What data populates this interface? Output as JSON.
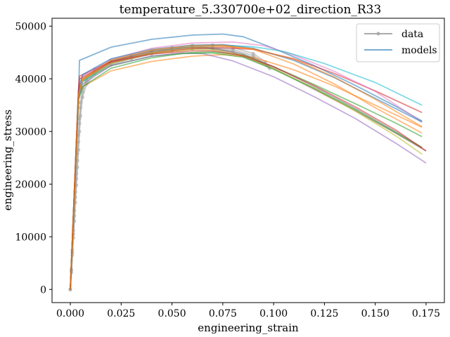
{
  "chart_data": {
    "type": "line",
    "title": "temperature_5.330700e+02_direction_R33",
    "xlabel": "engineering_strain",
    "ylabel": "engineering_stress",
    "xlim": [
      -0.009,
      0.184
    ],
    "ylim": [
      -2500,
      51500
    ],
    "xticks": [
      0.0,
      0.025,
      0.05,
      0.075,
      0.1,
      0.125,
      0.15,
      0.175
    ],
    "xtick_labels": [
      "0.000",
      "0.025",
      "0.050",
      "0.075",
      "0.100",
      "0.125",
      "0.150",
      "0.175"
    ],
    "yticks": [
      0,
      10000,
      20000,
      30000,
      40000,
      50000
    ],
    "ytick_labels": [
      "0",
      "10000",
      "20000",
      "30000",
      "40000",
      "50000"
    ],
    "grid": false,
    "legend": {
      "placement": "top-right",
      "entries": [
        {
          "label": "data",
          "color": "#aaaaaa",
          "marker": "circle"
        },
        {
          "label": "models",
          "color": "#1f77b4",
          "marker": "none"
        }
      ]
    },
    "data_series": {
      "name": "data",
      "color": "#aaaaaa",
      "curves": [
        [
          [
            0.0,
            0
          ],
          [
            0.0005,
            3500
          ],
          [
            0.001,
            7000
          ],
          [
            0.0015,
            10500
          ],
          [
            0.002,
            14000
          ],
          [
            0.0025,
            17500
          ],
          [
            0.003,
            21000
          ],
          [
            0.0035,
            24500
          ],
          [
            0.004,
            28000
          ],
          [
            0.0045,
            31500
          ],
          [
            0.005,
            34500
          ],
          [
            0.006,
            37500
          ],
          [
            0.008,
            39600
          ],
          [
            0.012,
            41300
          ],
          [
            0.02,
            42800
          ],
          [
            0.03,
            44000
          ],
          [
            0.04,
            44900
          ],
          [
            0.05,
            45500
          ],
          [
            0.06,
            45900
          ],
          [
            0.07,
            46000
          ],
          [
            0.08,
            45600
          ],
          [
            0.09,
            44400
          ],
          [
            0.097,
            42500
          ]
        ],
        [
          [
            0.0,
            0
          ],
          [
            0.0005,
            3200
          ],
          [
            0.001,
            6500
          ],
          [
            0.0015,
            9800
          ],
          [
            0.002,
            13000
          ],
          [
            0.0025,
            16500
          ],
          [
            0.003,
            19800
          ],
          [
            0.0035,
            23200
          ],
          [
            0.004,
            26500
          ],
          [
            0.0045,
            30000
          ],
          [
            0.005,
            33000
          ],
          [
            0.006,
            36500
          ],
          [
            0.008,
            39000
          ],
          [
            0.012,
            41000
          ],
          [
            0.02,
            42600
          ],
          [
            0.03,
            43800
          ],
          [
            0.04,
            44700
          ],
          [
            0.05,
            45300
          ],
          [
            0.06,
            45700
          ],
          [
            0.07,
            45800
          ],
          [
            0.08,
            45300
          ],
          [
            0.09,
            44000
          ],
          [
            0.098,
            42000
          ]
        ],
        [
          [
            0.0,
            0
          ],
          [
            0.0005,
            3800
          ],
          [
            0.001,
            7500
          ],
          [
            0.0015,
            11200
          ],
          [
            0.002,
            15000
          ],
          [
            0.0025,
            18500
          ],
          [
            0.003,
            22000
          ],
          [
            0.0035,
            25800
          ],
          [
            0.004,
            29300
          ],
          [
            0.0045,
            32500
          ],
          [
            0.005,
            35500
          ],
          [
            0.006,
            38200
          ],
          [
            0.008,
            40200
          ],
          [
            0.012,
            41800
          ],
          [
            0.02,
            43300
          ],
          [
            0.03,
            44400
          ],
          [
            0.04,
            45300
          ],
          [
            0.05,
            45900
          ],
          [
            0.06,
            46300
          ],
          [
            0.07,
            46400
          ],
          [
            0.08,
            46000
          ],
          [
            0.09,
            44800
          ],
          [
            0.096,
            43200
          ]
        ]
      ]
    },
    "model_series": [
      {
        "color": "#1f77b4",
        "points": [
          [
            0.0,
            0
          ],
          [
            0.004,
            36000
          ],
          [
            0.0045,
            43500
          ],
          [
            0.02,
            46000
          ],
          [
            0.04,
            47500
          ],
          [
            0.06,
            48300
          ],
          [
            0.075,
            48500
          ],
          [
            0.085,
            48000
          ],
          [
            0.1,
            45800
          ],
          [
            0.12,
            42500
          ],
          [
            0.14,
            38800
          ],
          [
            0.16,
            34800
          ],
          [
            0.173,
            32000
          ]
        ]
      },
      {
        "color": "#ff7f0e",
        "points": [
          [
            0.0,
            0
          ],
          [
            0.004,
            36500
          ],
          [
            0.006,
            38500
          ],
          [
            0.02,
            41500
          ],
          [
            0.04,
            43300
          ],
          [
            0.06,
            44300
          ],
          [
            0.075,
            44600
          ],
          [
            0.09,
            44100
          ],
          [
            0.11,
            41700
          ],
          [
            0.13,
            38600
          ],
          [
            0.15,
            35000
          ],
          [
            0.173,
            30800
          ]
        ]
      },
      {
        "color": "#2ca02c",
        "points": [
          [
            0.0,
            0
          ],
          [
            0.004,
            37000
          ],
          [
            0.006,
            39500
          ],
          [
            0.02,
            42500
          ],
          [
            0.04,
            44300
          ],
          [
            0.06,
            45000
          ],
          [
            0.07,
            45100
          ],
          [
            0.085,
            44500
          ],
          [
            0.1,
            42300
          ],
          [
            0.12,
            38900
          ],
          [
            0.14,
            35300
          ],
          [
            0.16,
            31600
          ],
          [
            0.173,
            29000
          ]
        ]
      },
      {
        "color": "#d62728",
        "points": [
          [
            0.0,
            0
          ],
          [
            0.004,
            37500
          ],
          [
            0.0045,
            40500
          ],
          [
            0.02,
            43300
          ],
          [
            0.04,
            44900
          ],
          [
            0.06,
            45700
          ],
          [
            0.075,
            45900
          ],
          [
            0.09,
            45600
          ],
          [
            0.11,
            43800
          ],
          [
            0.13,
            41000
          ],
          [
            0.15,
            37700
          ],
          [
            0.173,
            33600
          ]
        ]
      },
      {
        "color": "#9467bd",
        "points": [
          [
            0.0,
            0
          ],
          [
            0.004,
            36000
          ],
          [
            0.006,
            39000
          ],
          [
            0.02,
            42500
          ],
          [
            0.04,
            44300
          ],
          [
            0.055,
            44900
          ],
          [
            0.065,
            44800
          ],
          [
            0.08,
            43400
          ],
          [
            0.1,
            40400
          ],
          [
            0.12,
            36600
          ],
          [
            0.14,
            32500
          ],
          [
            0.16,
            27800
          ],
          [
            0.175,
            24000
          ]
        ]
      },
      {
        "color": "#8c564b",
        "points": [
          [
            0.0,
            0
          ],
          [
            0.004,
            37000
          ],
          [
            0.006,
            39800
          ],
          [
            0.02,
            43300
          ],
          [
            0.04,
            45200
          ],
          [
            0.055,
            45900
          ],
          [
            0.065,
            46000
          ],
          [
            0.08,
            45000
          ],
          [
            0.1,
            42000
          ],
          [
            0.12,
            38000
          ],
          [
            0.14,
            34000
          ],
          [
            0.16,
            29700
          ],
          [
            0.175,
            26300
          ]
        ]
      },
      {
        "color": "#e377c2",
        "points": [
          [
            0.0,
            0
          ],
          [
            0.004,
            37500
          ],
          [
            0.006,
            40500
          ],
          [
            0.02,
            43700
          ],
          [
            0.04,
            45800
          ],
          [
            0.06,
            46800
          ],
          [
            0.08,
            47000
          ],
          [
            0.095,
            46300
          ],
          [
            0.11,
            44500
          ],
          [
            0.13,
            41400
          ],
          [
            0.15,
            37600
          ],
          [
            0.173,
            31800
          ]
        ]
      },
      {
        "color": "#7f7f7f",
        "points": [
          [
            0.0,
            0
          ],
          [
            0.004,
            37500
          ],
          [
            0.006,
            40000
          ],
          [
            0.02,
            43500
          ],
          [
            0.04,
            45300
          ],
          [
            0.06,
            46000
          ],
          [
            0.07,
            45900
          ],
          [
            0.085,
            44700
          ],
          [
            0.1,
            42300
          ],
          [
            0.12,
            38500
          ],
          [
            0.14,
            34400
          ],
          [
            0.16,
            30000
          ],
          [
            0.173,
            27000
          ]
        ]
      },
      {
        "color": "#bcbd22",
        "points": [
          [
            0.0,
            0
          ],
          [
            0.004,
            37000
          ],
          [
            0.006,
            39800
          ],
          [
            0.02,
            42900
          ],
          [
            0.04,
            44800
          ],
          [
            0.06,
            45600
          ],
          [
            0.07,
            45500
          ],
          [
            0.085,
            44400
          ],
          [
            0.1,
            41900
          ],
          [
            0.12,
            38200
          ],
          [
            0.14,
            33900
          ],
          [
            0.16,
            29200
          ],
          [
            0.173,
            25700
          ]
        ]
      },
      {
        "color": "#17becf",
        "points": [
          [
            0.0,
            0
          ],
          [
            0.004,
            36500
          ],
          [
            0.006,
            39500
          ],
          [
            0.02,
            43000
          ],
          [
            0.04,
            45000
          ],
          [
            0.06,
            46100
          ],
          [
            0.075,
            46400
          ],
          [
            0.09,
            46100
          ],
          [
            0.105,
            45200
          ],
          [
            0.125,
            42900
          ],
          [
            0.15,
            39300
          ],
          [
            0.173,
            35000
          ]
        ]
      },
      {
        "color": "#1f77b4",
        "points": [
          [
            0.0,
            0
          ],
          [
            0.004,
            38000
          ],
          [
            0.006,
            40800
          ],
          [
            0.02,
            43800
          ],
          [
            0.04,
            45600
          ],
          [
            0.06,
            46400
          ],
          [
            0.075,
            46500
          ],
          [
            0.09,
            45800
          ],
          [
            0.11,
            43500
          ],
          [
            0.13,
            40200
          ],
          [
            0.15,
            36300
          ],
          [
            0.173,
            31800
          ]
        ]
      },
      {
        "color": "#ff7f0e",
        "points": [
          [
            0.0,
            0
          ],
          [
            0.004,
            37000
          ],
          [
            0.006,
            39800
          ],
          [
            0.02,
            43000
          ],
          [
            0.04,
            45000
          ],
          [
            0.06,
            46000
          ],
          [
            0.075,
            46200
          ],
          [
            0.09,
            45700
          ],
          [
            0.11,
            43700
          ],
          [
            0.13,
            40300
          ],
          [
            0.15,
            36100
          ],
          [
            0.173,
            30900
          ]
        ]
      },
      {
        "color": "#2ca02c",
        "points": [
          [
            0.0,
            0
          ],
          [
            0.004,
            36000
          ],
          [
            0.006,
            38500
          ],
          [
            0.02,
            42000
          ],
          [
            0.04,
            44000
          ],
          [
            0.055,
            44800
          ],
          [
            0.07,
            44900
          ],
          [
            0.085,
            44100
          ],
          [
            0.1,
            41800
          ],
          [
            0.12,
            38200
          ],
          [
            0.14,
            34200
          ],
          [
            0.16,
            29800
          ],
          [
            0.173,
            26900
          ]
        ]
      },
      {
        "color": "#d62728",
        "points": [
          [
            0.0,
            0
          ],
          [
            0.004,
            37500
          ],
          [
            0.0045,
            40000
          ],
          [
            0.02,
            43200
          ],
          [
            0.04,
            44700
          ],
          [
            0.06,
            45300
          ],
          [
            0.07,
            45300
          ],
          [
            0.085,
            44400
          ],
          [
            0.1,
            42300
          ],
          [
            0.12,
            38700
          ],
          [
            0.14,
            34700
          ],
          [
            0.16,
            30300
          ],
          [
            0.175,
            26300
          ]
        ]
      },
      {
        "color": "#ff7f0e",
        "points": [
          [
            0.0,
            0
          ],
          [
            0.004,
            37000
          ],
          [
            0.006,
            40000
          ],
          [
            0.02,
            43500
          ],
          [
            0.04,
            45500
          ],
          [
            0.06,
            46300
          ],
          [
            0.075,
            46400
          ],
          [
            0.09,
            45600
          ],
          [
            0.11,
            42800
          ],
          [
            0.13,
            39000
          ],
          [
            0.15,
            34500
          ],
          [
            0.173,
            29700
          ]
        ]
      }
    ]
  }
}
